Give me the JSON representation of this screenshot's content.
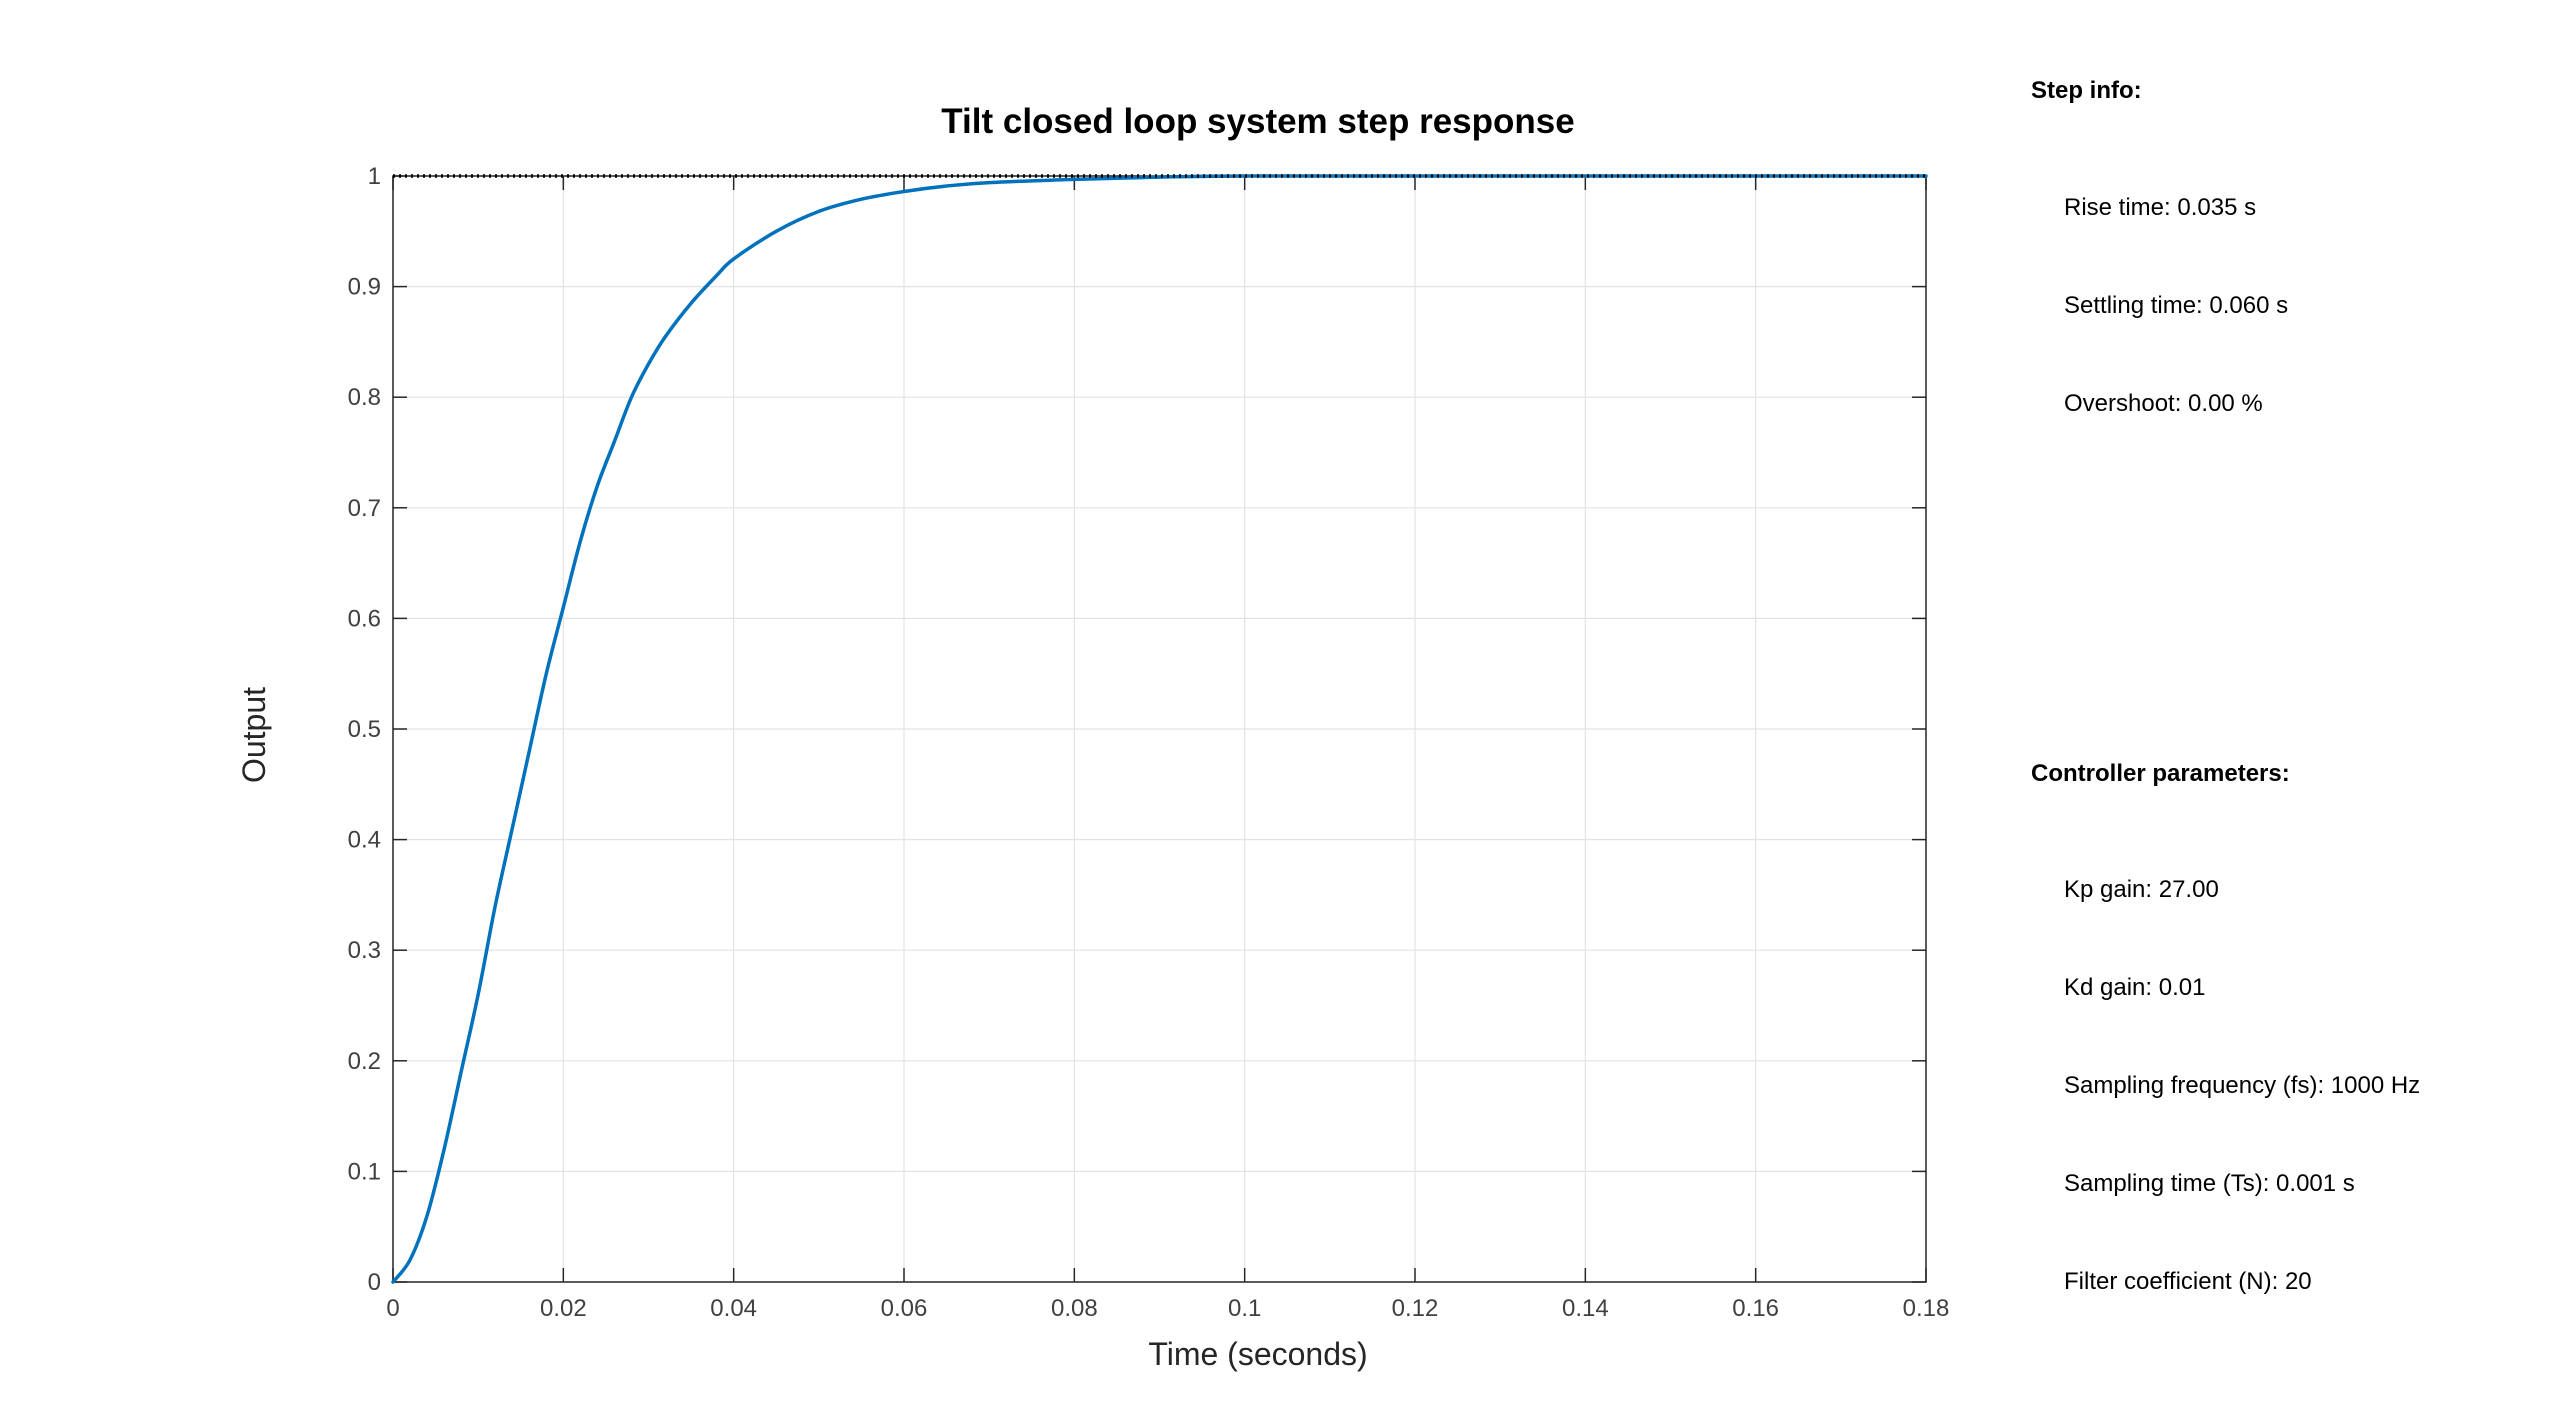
{
  "chart_data": {
    "type": "line",
    "title": "Tilt closed loop system step response",
    "xlabel": "Time (seconds)",
    "ylabel": "Output",
    "xlim": [
      0,
      0.18
    ],
    "ylim": [
      0,
      1
    ],
    "grid": true,
    "xticks": [
      "0",
      "0.02",
      "0.04",
      "0.06",
      "0.08",
      "0.1",
      "0.12",
      "0.14",
      "0.16",
      "0.18"
    ],
    "yticks": [
      "0",
      "0.1",
      "0.2",
      "0.3",
      "0.4",
      "0.5",
      "0.6",
      "0.7",
      "0.8",
      "0.9",
      "1"
    ],
    "series": [
      {
        "color": "#0072BD",
        "style": "solid",
        "x": [
          0,
          0.002,
          0.004,
          0.006,
          0.008,
          0.01,
          0.012,
          0.014,
          0.016,
          0.018,
          0.02,
          0.022,
          0.024,
          0.026,
          0.028,
          0.03,
          0.032,
          0.035,
          0.038,
          0.04,
          0.045,
          0.05,
          0.055,
          0.06,
          0.065,
          0.07,
          0.08,
          0.09,
          0.1,
          0.12,
          0.14,
          0.16,
          0.18
        ],
        "y": [
          0,
          0.02,
          0.06,
          0.12,
          0.19,
          0.26,
          0.34,
          0.41,
          0.48,
          0.55,
          0.61,
          0.67,
          0.72,
          0.76,
          0.8,
          0.83,
          0.855,
          0.885,
          0.91,
          0.925,
          0.95,
          0.968,
          0.979,
          0.986,
          0.991,
          0.994,
          0.997,
          0.999,
          1.0,
          1.0,
          1.0,
          1.0,
          1.0
        ]
      },
      {
        "color": "#000000",
        "style": "dotted",
        "x": [
          0,
          0.18
        ],
        "y": [
          1,
          1
        ]
      }
    ]
  },
  "step_info": {
    "heading": "Step info:",
    "rise_time": "Rise time: 0.035 s",
    "settling_time": "Settling time: 0.060 s",
    "overshoot": "Overshoot: 0.00 %"
  },
  "controller_parameters": {
    "heading": "Controller parameters:",
    "kp_gain": "Kp gain: 27.00",
    "kd_gain": "Kd gain: 0.01",
    "sampling_frequency": "Sampling frequency (fs): 1000 Hz",
    "sampling_time": "Sampling time (Ts): 0.001 s",
    "filter_coefficient": "Filter coefficient (N): 20"
  }
}
